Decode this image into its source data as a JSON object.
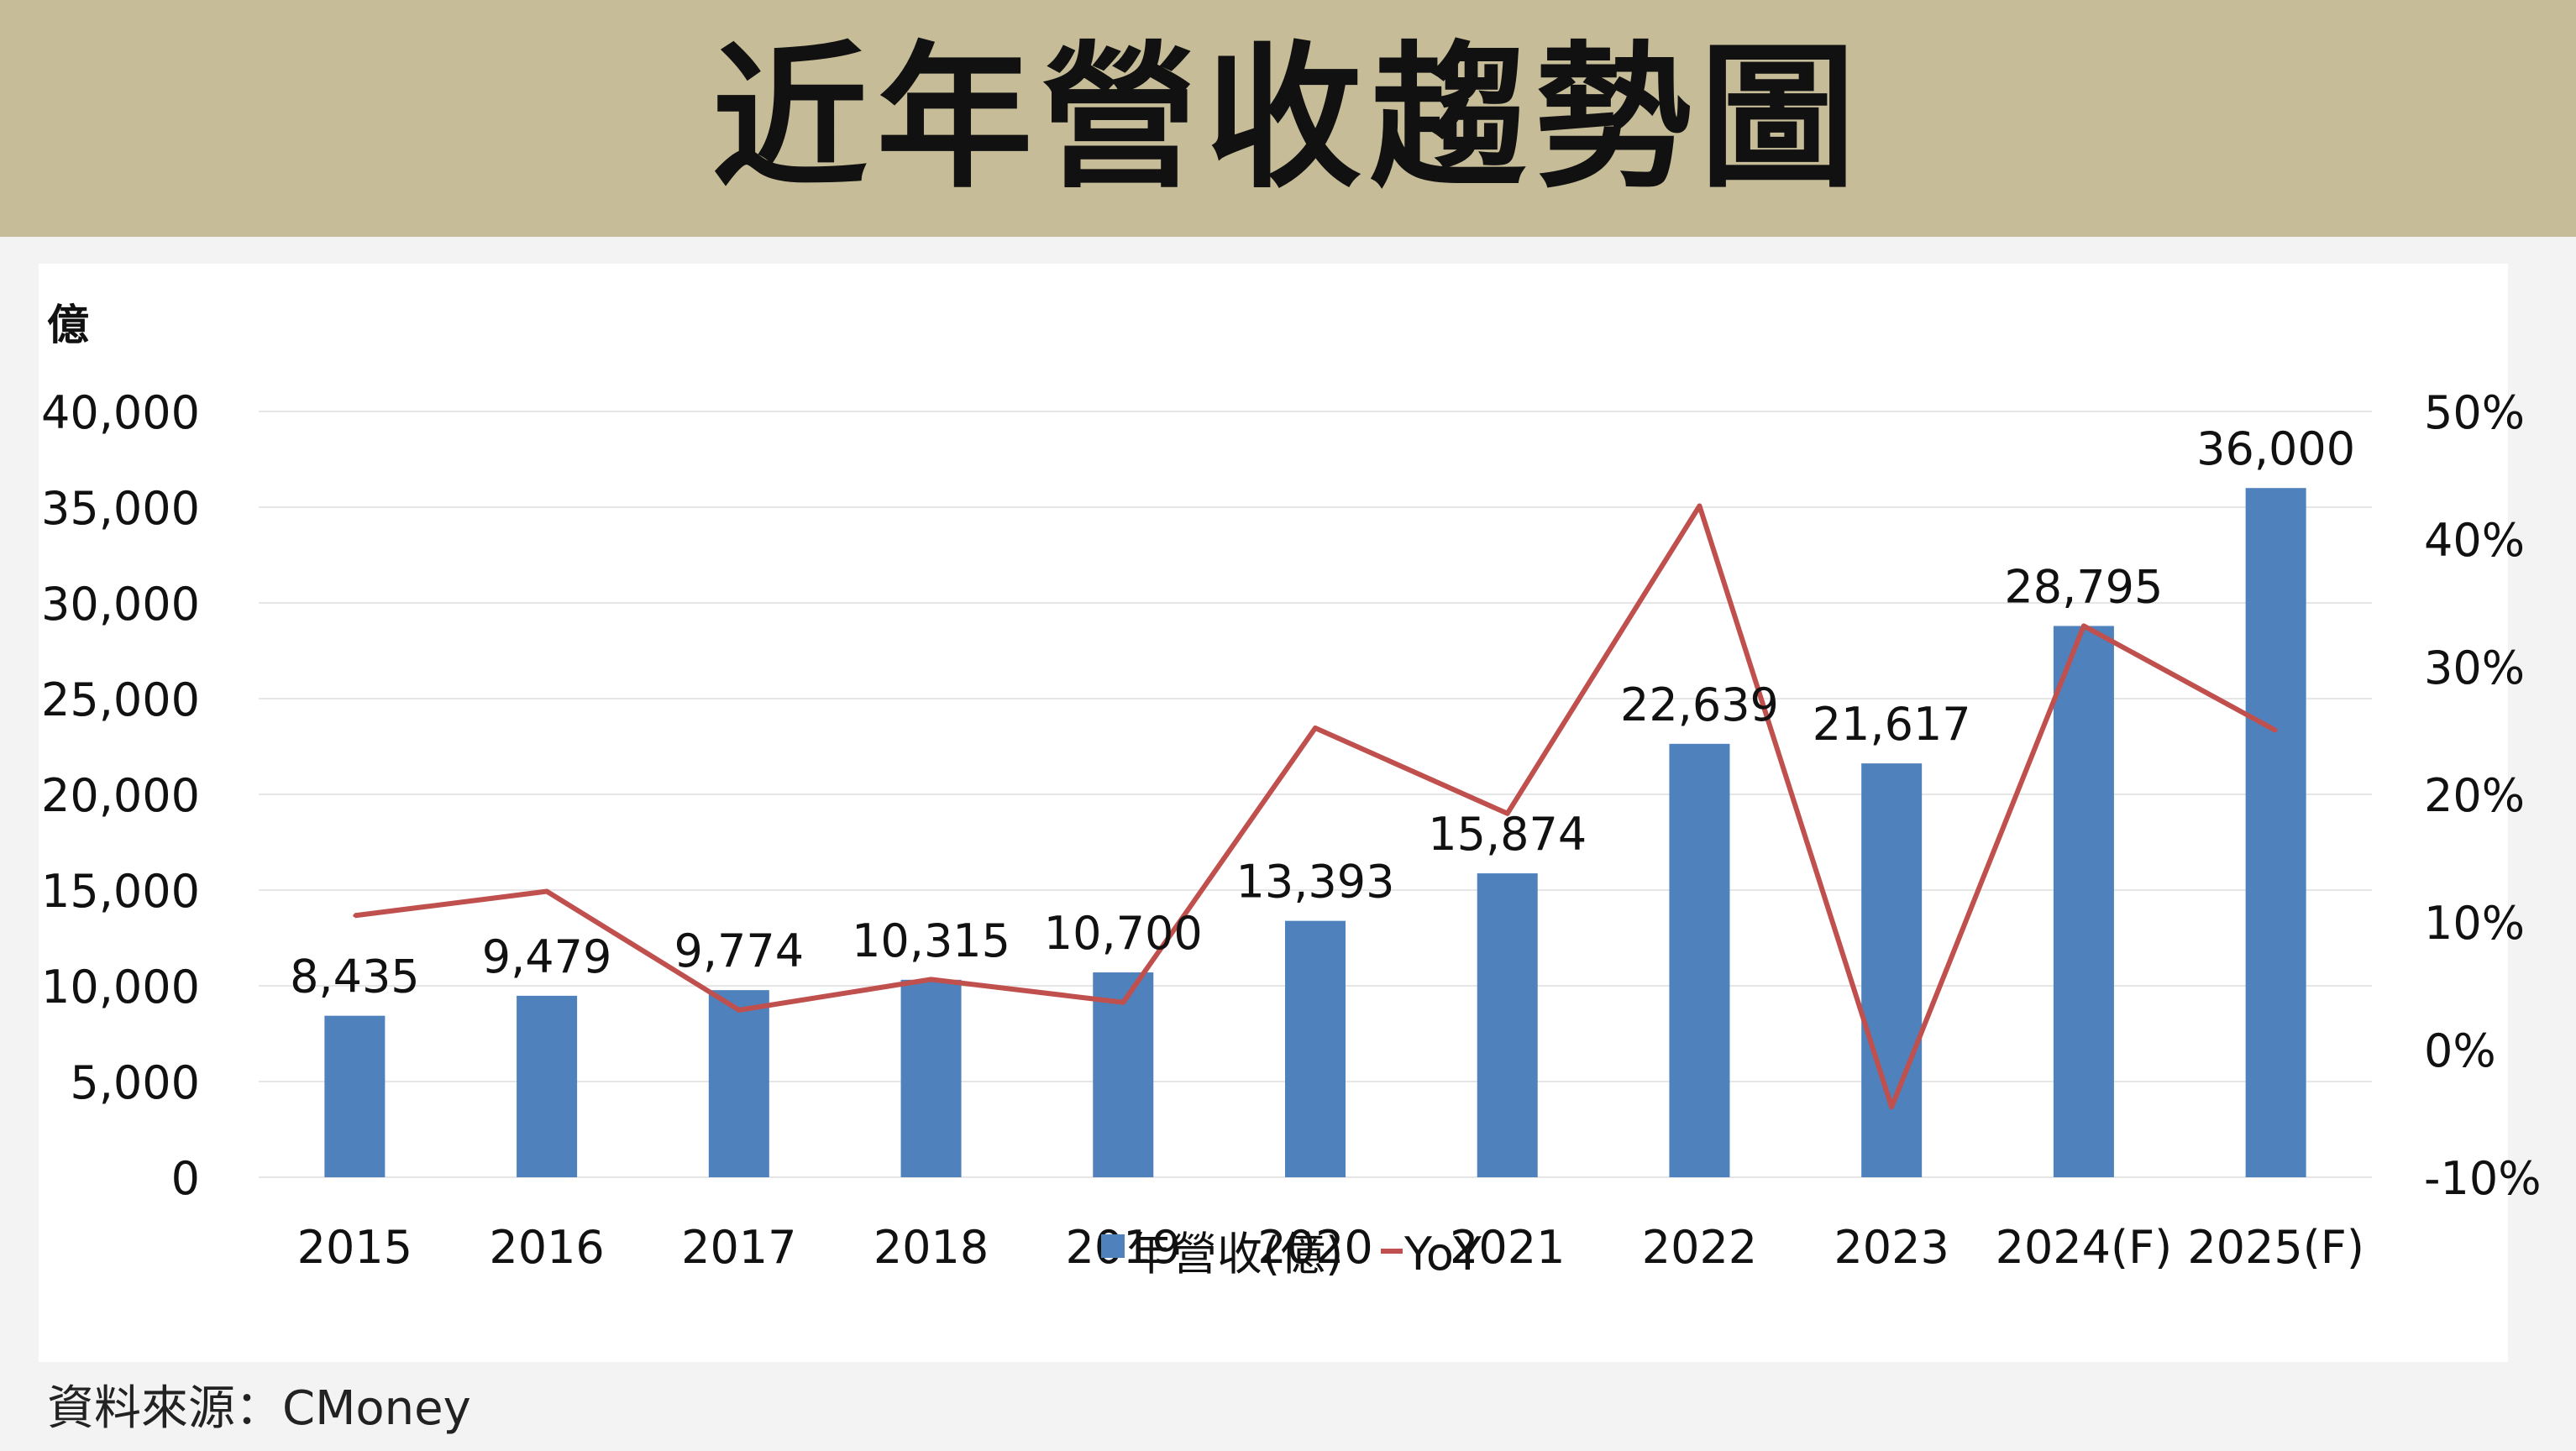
{
  "page_title": "近年營收趨勢圖",
  "source_note": "資料來源：CMoney",
  "colors": {
    "banner": "#c6bd98",
    "bar": "#4f81bd",
    "line": "#c0504d",
    "grid": "#e6e6e6",
    "text": "#111111"
  },
  "chart_data": {
    "type": "bar",
    "title": "",
    "y_unit": "億",
    "categories": [
      "2015",
      "2016",
      "2017",
      "2018",
      "2019",
      "2020",
      "2021",
      "2022",
      "2023",
      "2024(F)",
      "2025(F)"
    ],
    "series": [
      {
        "name": "年營收(億)",
        "type": "bar",
        "axis": "left",
        "values": [
          8435,
          9479,
          9774,
          10315,
          10700,
          13393,
          15874,
          22639,
          21617,
          28795,
          36000
        ],
        "labels": [
          "8,435",
          "9,479",
          "9,774",
          "10,315",
          "10,700",
          "13,393",
          "15,874",
          "22,639",
          "21,617",
          "28,795",
          "36,000"
        ]
      },
      {
        "name": "YoY",
        "type": "line",
        "axis": "right",
        "values": [
          10.5,
          12.4,
          3.1,
          5.5,
          3.7,
          25.2,
          18.5,
          42.6,
          -4.5,
          33.2,
          25.0
        ]
      }
    ],
    "y_left": {
      "min": 0,
      "max": 40000,
      "ticks": [
        0,
        5000,
        10000,
        15000,
        20000,
        25000,
        30000,
        35000,
        40000
      ],
      "tick_labels": [
        "0",
        "5,000",
        "10,000",
        "15,000",
        "20,000",
        "25,000",
        "30,000",
        "35,000",
        "40,000"
      ]
    },
    "y_right": {
      "min": -10,
      "max": 50,
      "ticks": [
        -10,
        0,
        10,
        20,
        30,
        40,
        50
      ],
      "tick_labels": [
        "-10%",
        "0%",
        "10%",
        "20%",
        "30%",
        "40%",
        "50%"
      ]
    },
    "grid": true,
    "legend_position": "bottom"
  }
}
